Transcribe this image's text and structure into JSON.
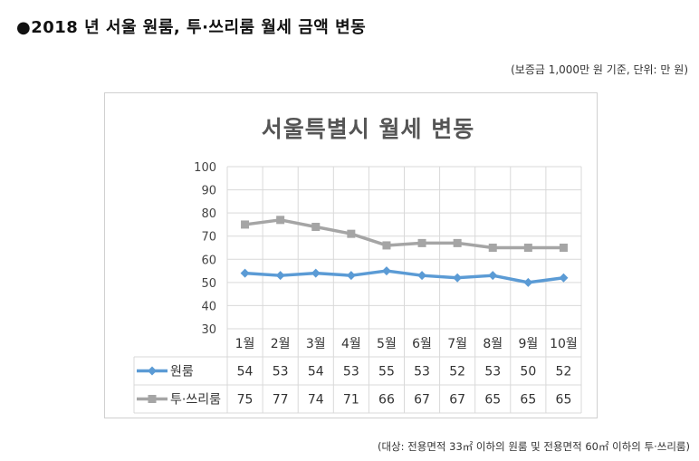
{
  "heading": "●2018 년 서울 원룸, 투·쓰리룸 월세 금액 변동",
  "unit_note": "(보증금 1,000만 원 기준, 단위: 만 원)",
  "source_note": "(대상: 전용면적 33㎡ 이하의 원룸 및 전용면적 60㎡ 이하의 투·쓰리룸)",
  "chart_data": {
    "type": "line",
    "title": "서울특별시 월세 변동",
    "categories": [
      "1월",
      "2월",
      "3월",
      "4월",
      "5월",
      "6월",
      "7월",
      "8월",
      "9월",
      "10월"
    ],
    "series": [
      {
        "name": "원룸",
        "values": [
          54,
          53,
          54,
          53,
          55,
          53,
          52,
          53,
          50,
          52
        ],
        "color": "#5b9bd5",
        "marker": "diamond"
      },
      {
        "name": "투·쓰리룸",
        "values": [
          75,
          77,
          74,
          71,
          66,
          67,
          67,
          65,
          65,
          65
        ],
        "color": "#a5a5a5",
        "marker": "square"
      }
    ],
    "ylim": [
      30,
      100
    ],
    "yticks": [
      30,
      40,
      50,
      60,
      70,
      80,
      90,
      100
    ],
    "grid": true,
    "legend": "data-table"
  }
}
